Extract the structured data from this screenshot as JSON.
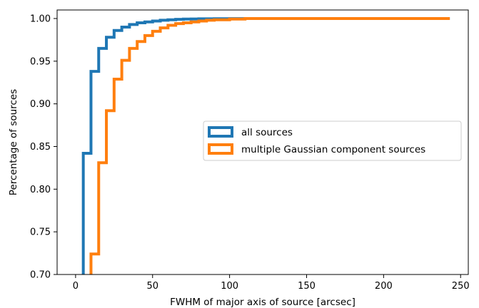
{
  "chart_data": {
    "type": "line",
    "xlabel": "FWHM of major axis of source [arcsec]",
    "ylabel": "Percentage of sources",
    "xlim": [
      -12,
      255
    ],
    "ylim": [
      0.7,
      1.01
    ],
    "x_ticks": [
      0,
      50,
      100,
      150,
      200,
      250
    ],
    "y_ticks": [
      0.7,
      0.75,
      0.8,
      0.85,
      0.9,
      0.95,
      1.0
    ],
    "x_tick_labels": [
      "0",
      "50",
      "100",
      "150",
      "200",
      "250"
    ],
    "y_tick_labels": [
      "0.70",
      "0.75",
      "0.80",
      "0.85",
      "0.90",
      "0.95",
      "1.00"
    ],
    "grid": false,
    "legend_position": "center-right",
    "series": [
      {
        "name": "all sources",
        "color": "#1f77b4",
        "step": "cumulative-histogram",
        "x": [
          5,
          10,
          15,
          20,
          25,
          30,
          35,
          40,
          45,
          50,
          55,
          60,
          65,
          70,
          75,
          80,
          90,
          100,
          110,
          243
        ],
        "y": [
          0.842,
          0.938,
          0.965,
          0.978,
          0.986,
          0.99,
          0.993,
          0.995,
          0.996,
          0.997,
          0.998,
          0.9985,
          0.999,
          0.9993,
          0.9995,
          0.9997,
          0.9998,
          0.9999,
          1.0,
          1.0
        ]
      },
      {
        "name": "multiple Gaussian component sources",
        "color": "#ff7f0e",
        "step": "cumulative-histogram",
        "x": [
          10,
          15,
          20,
          25,
          30,
          35,
          40,
          45,
          50,
          55,
          60,
          65,
          70,
          75,
          80,
          85,
          90,
          100,
          110,
          243
        ],
        "y": [
          0.724,
          0.831,
          0.892,
          0.929,
          0.951,
          0.965,
          0.973,
          0.98,
          0.985,
          0.989,
          0.992,
          0.994,
          0.995,
          0.996,
          0.997,
          0.998,
          0.9985,
          0.9993,
          1.0,
          1.0
        ]
      }
    ]
  }
}
